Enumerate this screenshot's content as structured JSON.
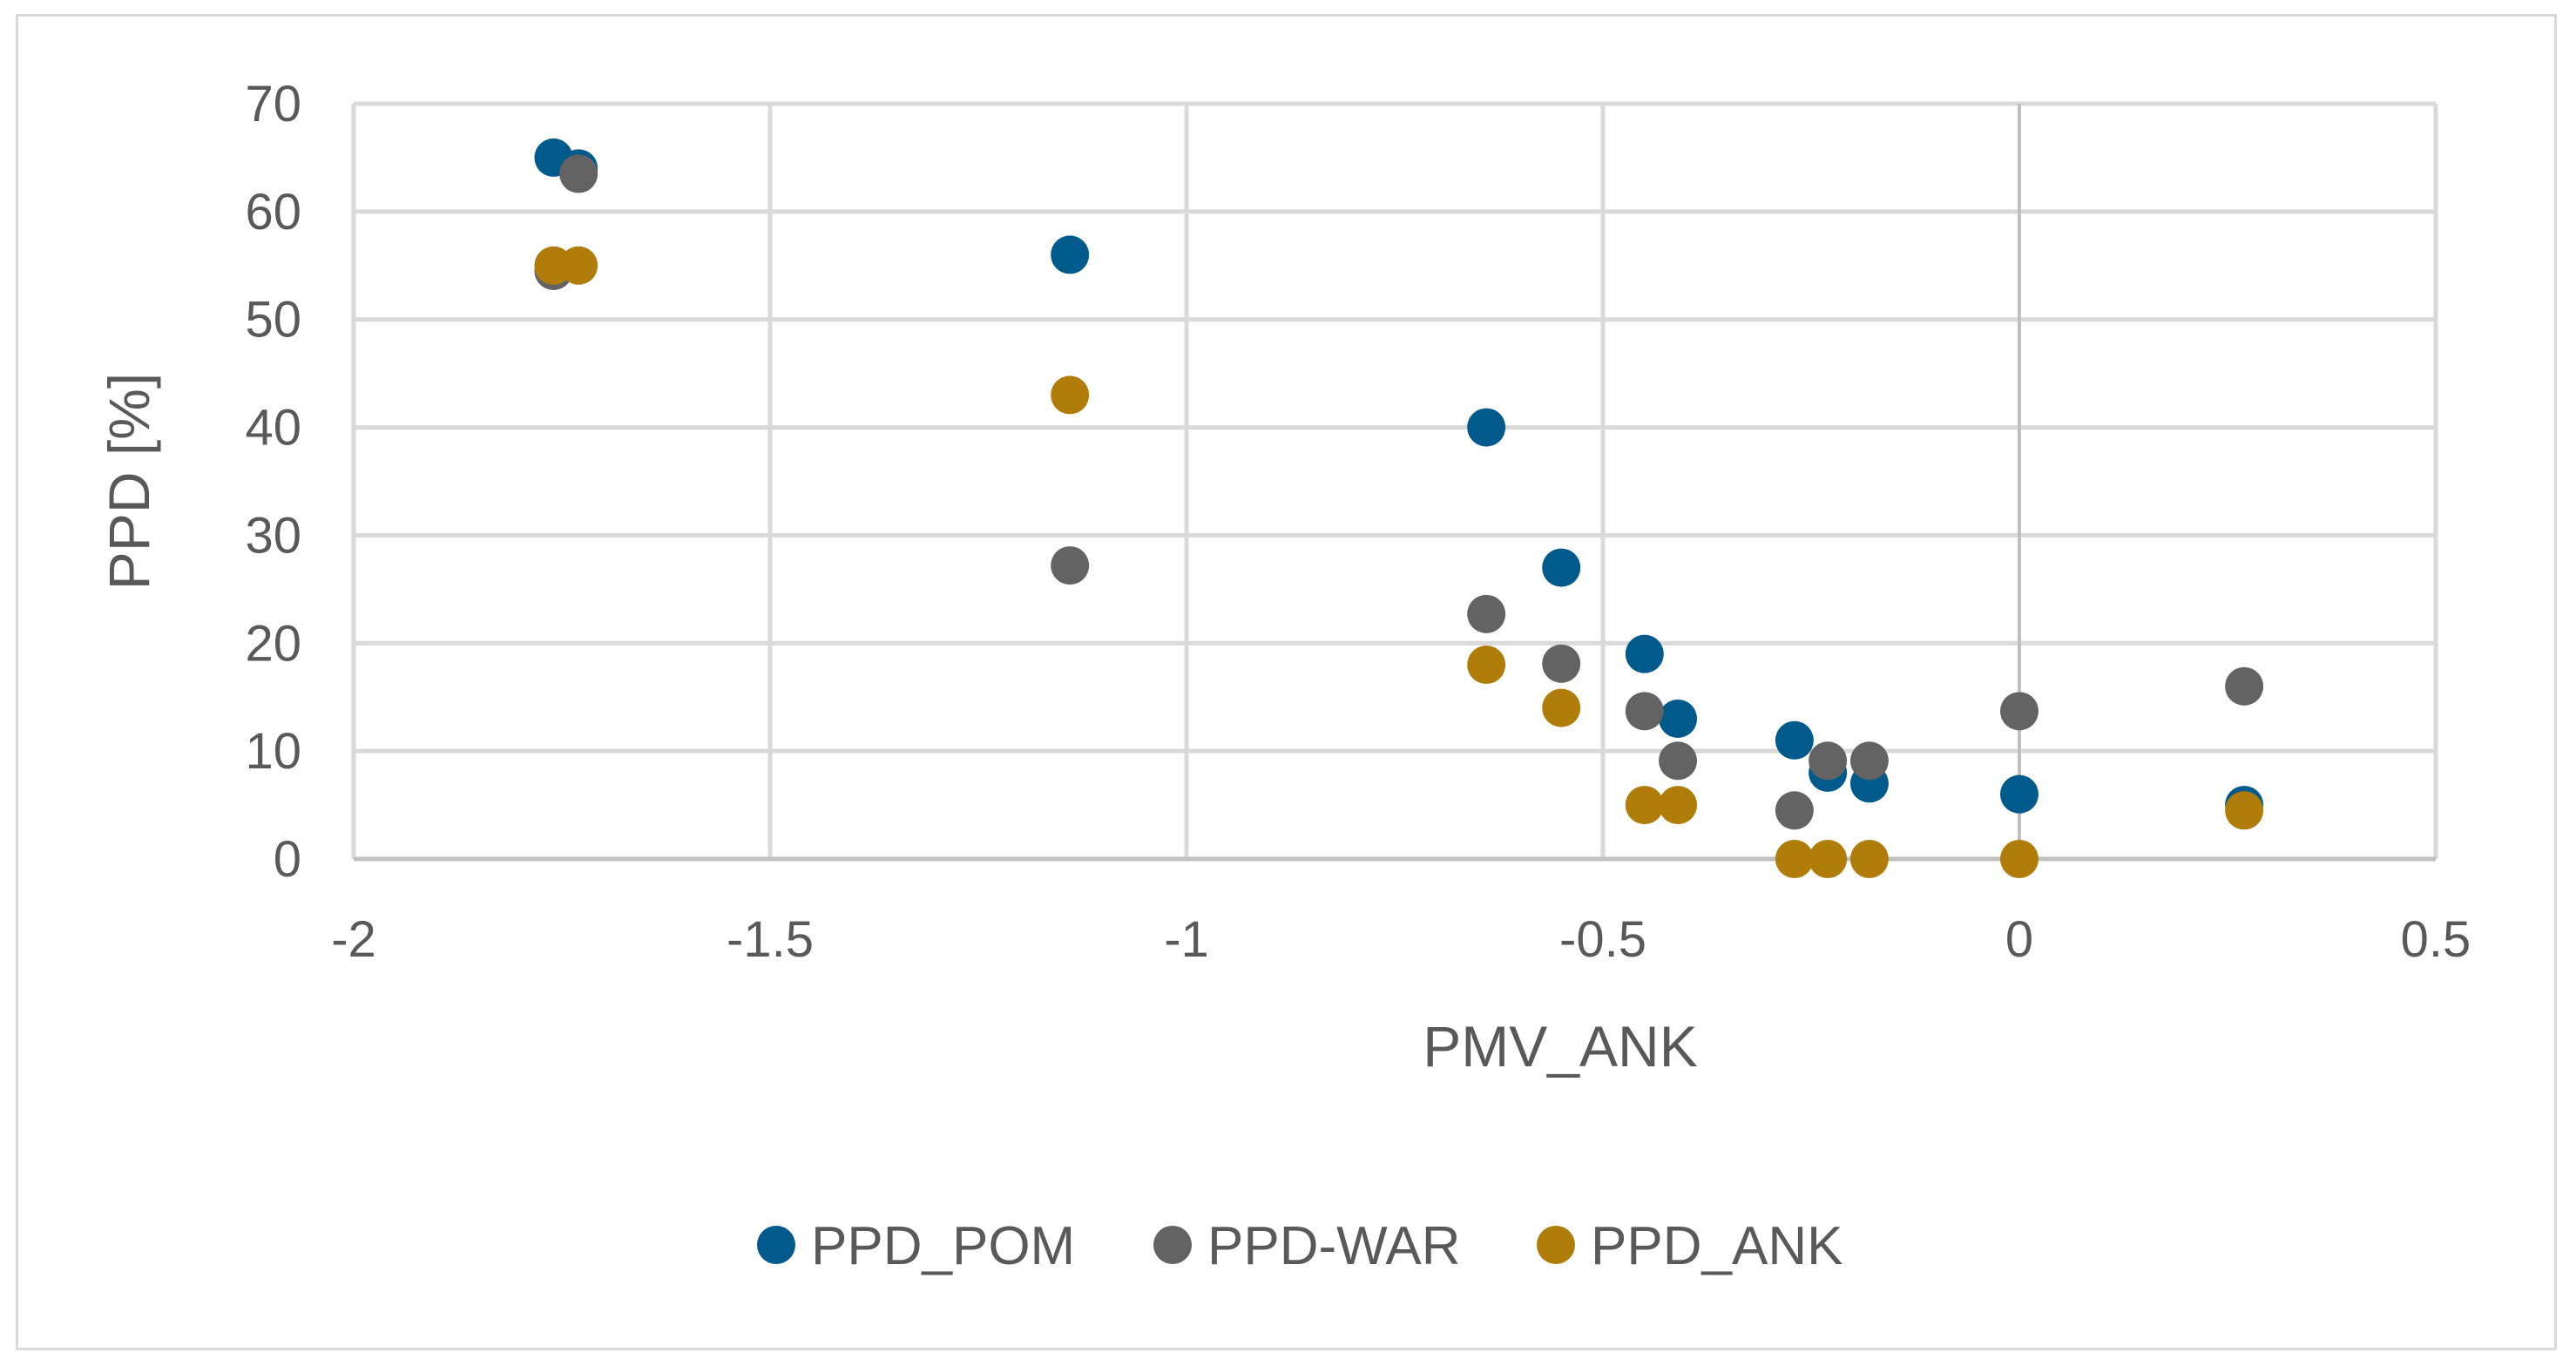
{
  "chart_data": {
    "type": "scatter",
    "title": "",
    "xlabel": "PMV_ANK",
    "ylabel": "PPD [%]",
    "xlim": [
      -2,
      0.5
    ],
    "ylim": [
      0,
      70
    ],
    "x_ticks": [
      -2,
      -1.5,
      -1,
      -0.5,
      0,
      0.5
    ],
    "x_tick_labels": [
      "-2",
      "-1.5",
      "-1",
      "-0.5",
      "0",
      "0.5"
    ],
    "y_ticks": [
      0,
      10,
      20,
      30,
      40,
      50,
      60,
      70
    ],
    "y_tick_labels": [
      "0",
      "10",
      "20",
      "30",
      "40",
      "50",
      "60",
      "70"
    ],
    "grid": true,
    "legend_position": "bottom",
    "series": [
      {
        "name": "PPD_POM",
        "color": "#005a8c",
        "points": [
          [
            -1.76,
            65
          ],
          [
            -1.73,
            64
          ],
          [
            -1.14,
            56
          ],
          [
            -0.64,
            40
          ],
          [
            -0.55,
            27
          ],
          [
            -0.45,
            19
          ],
          [
            -0.41,
            13
          ],
          [
            -0.27,
            11
          ],
          [
            -0.23,
            8
          ],
          [
            -0.18,
            7
          ],
          [
            0,
            6
          ],
          [
            0.27,
            5
          ]
        ]
      },
      {
        "name": "PPD-WAR",
        "color": "#636363",
        "points": [
          [
            -1.76,
            54.5
          ],
          [
            -1.73,
            63.5
          ],
          [
            -1.14,
            27.2
          ],
          [
            -0.64,
            22.7
          ],
          [
            -0.55,
            18.1
          ],
          [
            -0.45,
            13.7
          ],
          [
            -0.41,
            9.1
          ],
          [
            -0.27,
            4.5
          ],
          [
            -0.23,
            9.1
          ],
          [
            -0.18,
            9.1
          ],
          [
            0,
            13.7
          ],
          [
            0.27,
            16
          ]
        ]
      },
      {
        "name": "PPD_ANK",
        "color": "#b07d0a",
        "points": [
          [
            -1.76,
            55
          ],
          [
            -1.73,
            55
          ],
          [
            -1.14,
            43
          ],
          [
            -0.64,
            18
          ],
          [
            -0.55,
            14
          ],
          [
            -0.45,
            5
          ],
          [
            -0.41,
            5
          ],
          [
            -0.27,
            0
          ],
          [
            -0.23,
            0
          ],
          [
            -0.18,
            0
          ],
          [
            0,
            0
          ],
          [
            0.27,
            4.5
          ]
        ]
      }
    ]
  }
}
